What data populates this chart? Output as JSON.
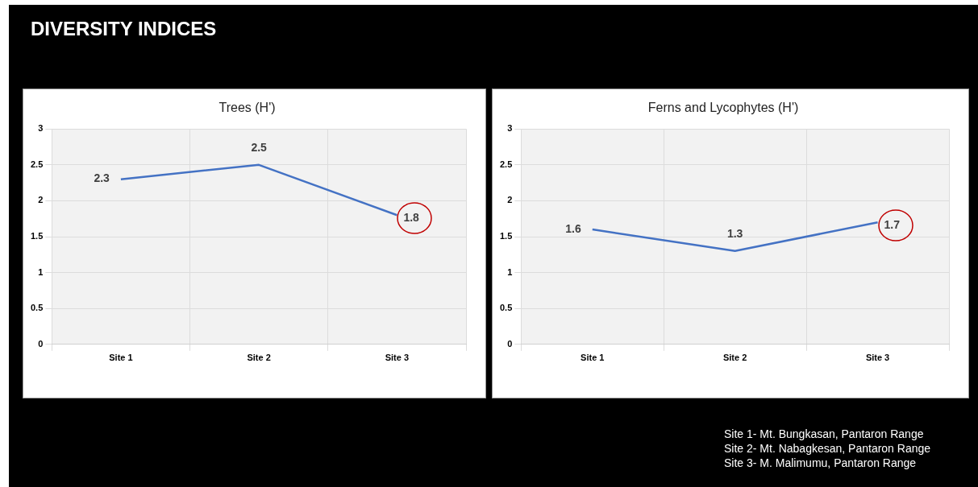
{
  "chart_data": [
    {
      "type": "line",
      "title": "Trees (H')",
      "categories": [
        "Site 1",
        "Site 2",
        "Site 3"
      ],
      "series": [
        {
          "color": "#4472c4",
          "values": [
            2.3,
            2.5,
            1.8
          ]
        }
      ],
      "ylim": [
        0,
        3
      ],
      "yticks": [
        0,
        0.5,
        1,
        1.5,
        2,
        2.5,
        3
      ],
      "grid": true,
      "marker": "none",
      "legend": false,
      "data_labels": true,
      "annotations": [
        "DIVERSITY INDICES"
      ]
    },
    {
      "type": "line",
      "title": "Ferns and Lycophytes (H')",
      "categories": [
        "Site 1",
        "Site 2",
        "Site 3"
      ],
      "series": [
        {
          "color": "#4472c4",
          "values": [
            1.6,
            1.3,
            1.7
          ]
        }
      ],
      "ylim": [
        0,
        3
      ],
      "yticks": [
        0,
        0.5,
        1,
        1.5,
        2,
        2.5,
        3
      ],
      "grid": true,
      "marker": "none",
      "legend": false,
      "data_labels": true,
      "annotations": [
        "Site 1- Mt. Bungkasan, Pantaron Range",
        "Site 2- Mt. Nabagkesan, Pantaron Range",
        "Site 3- M. Malimumu, Pantaron Range"
      ]
    }
  ]
}
